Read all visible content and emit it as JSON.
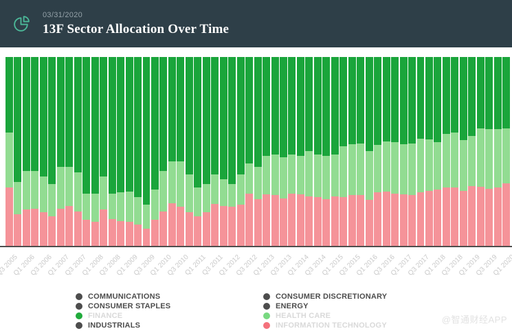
{
  "header": {
    "date": "03/31/2020",
    "title": "13F Sector Allocation Over Time",
    "bg_color": "#2e3f48",
    "icon_color": "#4cb999"
  },
  "chart_data": {
    "type": "bar",
    "stacked": true,
    "unit": "%",
    "title": "13F Sector Allocation Over Time",
    "xlabel": "",
    "ylabel": "",
    "ylim": [
      0,
      100
    ],
    "grid": false,
    "legend_position": "bottom",
    "x_tick_step": 2,
    "stack_order_top_to_bottom": [
      "FINANCE",
      "HEALTH CARE",
      "INFORMATION TECHNOLOGY"
    ],
    "categories": [
      "Q3 2005",
      "Q4 2005",
      "Q1 2006",
      "Q2 2006",
      "Q3 2006",
      "Q4 2006",
      "Q1 2007",
      "Q2 2007",
      "Q3 2007",
      "Q4 2007",
      "Q1 2008",
      "Q2 2008",
      "Q3 2008",
      "Q4 2008",
      "Q1 2009",
      "Q2 2009",
      "Q3 2009",
      "Q4 2009",
      "Q1 2010",
      "Q2 2010",
      "Q3 2010",
      "Q4 2010",
      "Q1 2011",
      "Q2 2011",
      "Q3 2011",
      "Q4 2011",
      "Q1 2012",
      "Q2 2012",
      "Q3 2012",
      "Q4 2012",
      "Q1 2013",
      "Q2 2013",
      "Q3 2013",
      "Q4 2013",
      "Q1 2014",
      "Q2 2014",
      "Q3 2014",
      "Q4 2014",
      "Q1 2015",
      "Q2 2015",
      "Q3 2015",
      "Q4 2015",
      "Q1 2016",
      "Q2 2016",
      "Q3 2016",
      "Q4 2016",
      "Q1 2017",
      "Q2 2017",
      "Q3 2017",
      "Q4 2017",
      "Q1 2018",
      "Q2 2018",
      "Q3 2018",
      "Q4 2018",
      "Q1 2019",
      "Q2 2019",
      "Q3 2019",
      "Q4 2019",
      "Q1 2020"
    ],
    "series": [
      {
        "name": "FINANCE",
        "color": "#1aa53b",
        "values": [
          40,
          66,
          60,
          60,
          63,
          67,
          58,
          58,
          61,
          72,
          72,
          63,
          72,
          71.5,
          71,
          74,
          78,
          70,
          60,
          55,
          55,
          62,
          69,
          67,
          62,
          64.5,
          67,
          62,
          56,
          58,
          52,
          51.5,
          53,
          51.5,
          52,
          49.5,
          51.5,
          52,
          51.5,
          47,
          46,
          45.5,
          49.5,
          46.5,
          44.5,
          45,
          46,
          45.5,
          43,
          43.5,
          45,
          40.5,
          40,
          44,
          41.5,
          37.5,
          38,
          38,
          37.5
        ]
      },
      {
        "name": "HEALTH CARE",
        "color": "#92dc92",
        "values": [
          29,
          17,
          20.5,
          20,
          19,
          17,
          22,
          20.5,
          20.5,
          14,
          15,
          17.5,
          13.5,
          15,
          16,
          14.5,
          12.5,
          16,
          21.5,
          22,
          24,
          20,
          15,
          15,
          15.5,
          14,
          12,
          16,
          16,
          17,
          20.5,
          21.5,
          21.5,
          20.5,
          20.5,
          24,
          22.5,
          23,
          22,
          27,
          27,
          27.5,
          26,
          25,
          26.5,
          27,
          26.5,
          27.5,
          28.5,
          27,
          25,
          28.5,
          29,
          26.5,
          26.5,
          31,
          31.5,
          31,
          29
        ]
      },
      {
        "name": "INFORMATION TECHNOLOGY",
        "color": "#f59399",
        "values": [
          31,
          17,
          19.5,
          20,
          18,
          16,
          20,
          21.5,
          18.5,
          14,
          13,
          19.5,
          14.5,
          13.5,
          13,
          11.5,
          9.5,
          14,
          18.5,
          23,
          21,
          18,
          16,
          18,
          22.5,
          21.5,
          21,
          22,
          28,
          25,
          27.5,
          27,
          25.5,
          28,
          27.5,
          26.5,
          26,
          25,
          26.5,
          26,
          27,
          27,
          24.5,
          28.5,
          29,
          28,
          27.5,
          27,
          28.5,
          29.5,
          30,
          31,
          31,
          29.5,
          32,
          31.5,
          30.5,
          31,
          33.5
        ]
      }
    ]
  },
  "legend": {
    "columns": [
      {
        "items": [
          {
            "label": "COMMUNICATIONS",
            "dot_color": "#4d4d4d",
            "faded": false
          },
          {
            "label": "CONSUMER STAPLES",
            "dot_color": "#4d4d4d",
            "faded": false
          },
          {
            "label": "FINANCE",
            "dot_color": "#21ab3c",
            "faded": true
          },
          {
            "label": "INDUSTRIALS",
            "dot_color": "#4d4d4d",
            "faded": false
          }
        ]
      },
      {
        "items": [
          {
            "label": "CONSUMER DISCRETIONARY",
            "dot_color": "#4d4d4d",
            "faded": false
          },
          {
            "label": "ENERGY",
            "dot_color": "#4d4d4d",
            "faded": false
          },
          {
            "label": "HEALTH CARE",
            "dot_color": "#79d981",
            "faded": true
          },
          {
            "label": "INFORMATION TECHNOLOGY",
            "dot_color": "#f4717c",
            "faded": true
          }
        ]
      }
    ],
    "text_color": "#4d4d4d",
    "faded_text_color": "#d9d9d9"
  },
  "axis": {
    "line_color": "#4d4d4d",
    "tick_label_color": "#c9c9c9"
  },
  "watermark": "@智通财经APP"
}
